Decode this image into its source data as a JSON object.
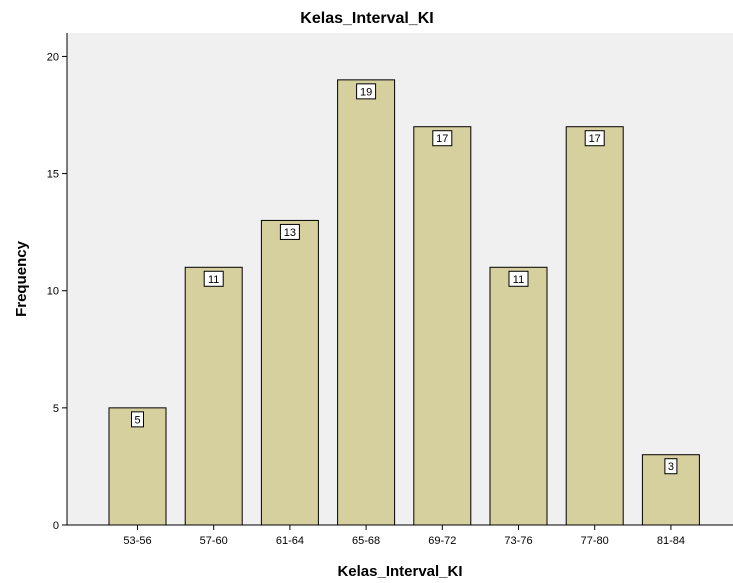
{
  "chart_data": {
    "type": "bar",
    "title": "Kelas_Interval_KI",
    "xlabel": "Kelas_Interval_KI",
    "ylabel": "Frequency",
    "categories": [
      "53-56",
      "57-60",
      "61-64",
      "65-68",
      "69-72",
      "73-76",
      "77-80",
      "81-84"
    ],
    "values": [
      5,
      11,
      13,
      19,
      17,
      11,
      17,
      3
    ],
    "data_labels": [
      "5",
      "11",
      "13",
      "19",
      "17",
      "11",
      "17",
      "3"
    ],
    "yticks": [
      0,
      5,
      10,
      15,
      20
    ],
    "ylim": [
      0,
      21
    ],
    "grid": false,
    "legend": "none",
    "colors": {
      "bar_fill": "#d6cf9e",
      "bar_stroke": "#000000",
      "plot_background": "#f0f0f0",
      "label_box": "#ffffff"
    }
  }
}
